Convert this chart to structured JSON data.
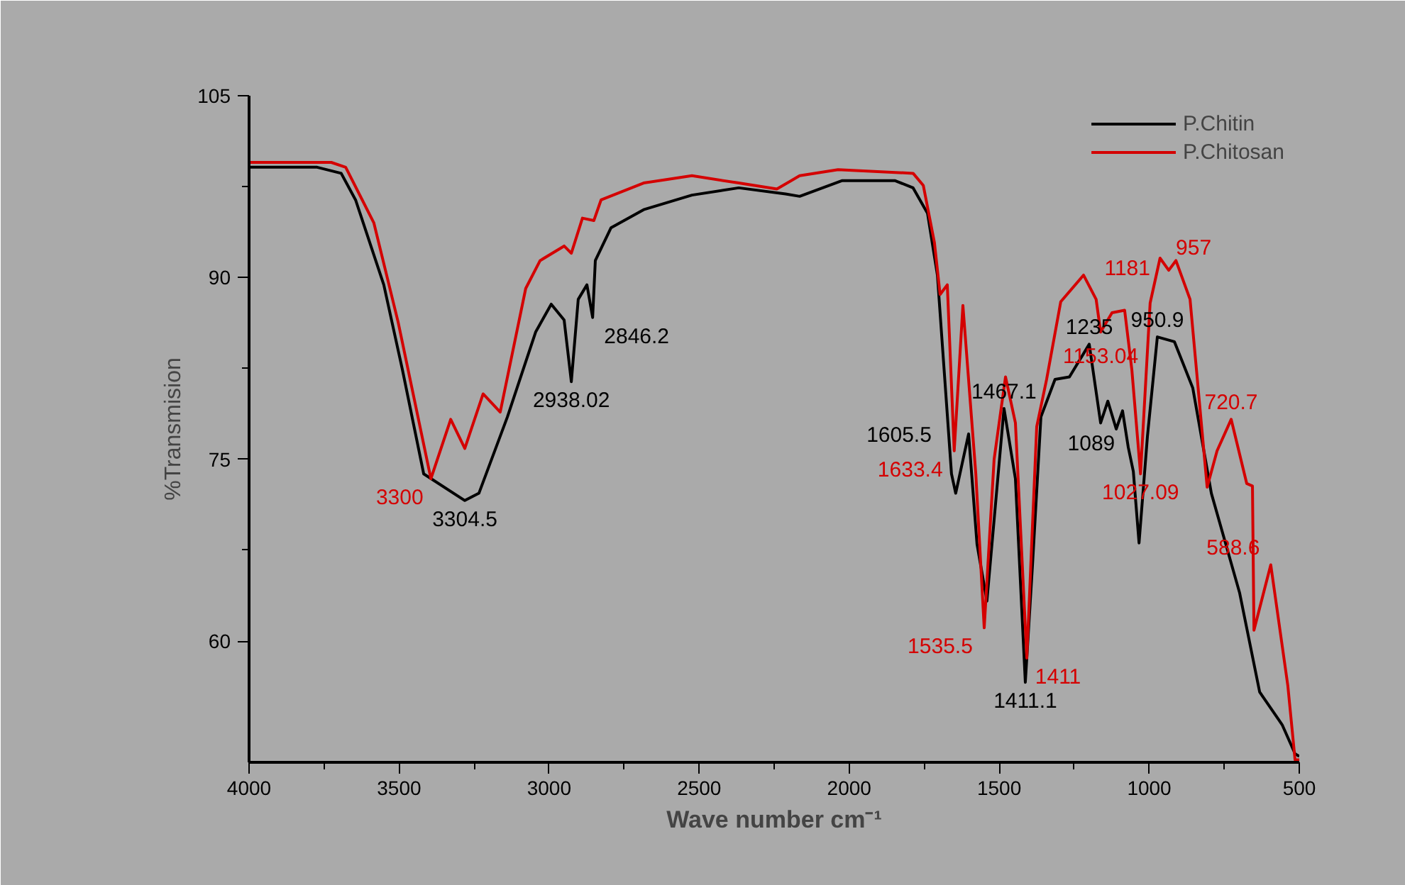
{
  "chart_data": {
    "type": "line",
    "xlabel": "Wave number cm⁻¹",
    "ylabel": "%Transmision",
    "xlim": [
      4000,
      500
    ],
    "ylim": [
      50,
      105
    ],
    "xticks": [
      4000,
      3500,
      3000,
      2500,
      2000,
      1500,
      1000,
      500
    ],
    "yticks": [
      60,
      75,
      90,
      105
    ],
    "grid": false,
    "legend": "top right",
    "marker": "none",
    "line_style": "solid",
    "series": [
      {
        "name": "P.Chitin",
        "color": "#000000",
        "x": [
          4000,
          3773,
          3693,
          3645,
          3551,
          3489,
          3418,
          3281,
          3234,
          3139,
          3045,
          2993,
          2950,
          2926,
          2903,
          2874,
          2855,
          2846,
          2794,
          2685,
          2524,
          2368,
          2212,
          2165,
          2023,
          1848,
          1787,
          1739,
          1706,
          1659,
          1645,
          1602,
          1574,
          1541,
          1484,
          1446,
          1413,
          1389,
          1361,
          1314,
          1266,
          1200,
          1162,
          1138,
          1110,
          1089,
          1070,
          1053,
          1034,
          1006,
          973,
          916,
          855,
          793,
          699,
          632,
          557,
          514,
          500
        ],
        "values": [
          99.1,
          99.1,
          98.6,
          96.4,
          89.4,
          82.4,
          73.8,
          71.6,
          72.2,
          78.5,
          85.5,
          87.8,
          86.5,
          81.4,
          88.2,
          89.4,
          86.7,
          91.4,
          94.1,
          95.6,
          96.8,
          97.4,
          96.9,
          96.7,
          98.0,
          98.0,
          97.4,
          95.3,
          90.2,
          73.8,
          72.2,
          77.1,
          68.0,
          63.3,
          79.2,
          73.4,
          56.6,
          66.3,
          78.5,
          81.6,
          81.8,
          84.5,
          78.0,
          79.8,
          77.5,
          79.0,
          76.0,
          74.0,
          68.1,
          76.9,
          85.1,
          84.7,
          80.9,
          72.2,
          64.0,
          55.8,
          53.1,
          50.7,
          50.5
        ]
      },
      {
        "name": "P.Chitosan",
        "color": "#d40000",
        "x": [
          4000,
          3726,
          3678,
          3584,
          3503,
          3394,
          3328,
          3281,
          3220,
          3163,
          3078,
          3030,
          2950,
          2926,
          2889,
          2851,
          2827,
          2685,
          2524,
          2368,
          2241,
          2165,
          2037,
          1787,
          1753,
          1716,
          1697,
          1673,
          1650,
          1621,
          1578,
          1550,
          1517,
          1479,
          1446,
          1408,
          1375,
          1342,
          1295,
          1219,
          1177,
          1162,
          1124,
          1082,
          1058,
          1029,
          997,
          964,
          935,
          911,
          864,
          807,
          774,
          727,
          675,
          656,
          651,
          595,
          538,
          514,
          500
        ],
        "values": [
          99.5,
          99.5,
          99.1,
          94.5,
          86.3,
          73.4,
          78.3,
          75.9,
          80.4,
          78.9,
          89.1,
          91.4,
          92.6,
          92.0,
          94.9,
          94.7,
          96.4,
          97.8,
          98.4,
          97.8,
          97.3,
          98.4,
          98.9,
          98.6,
          97.6,
          92.9,
          88.6,
          89.4,
          75.7,
          87.7,
          73.8,
          61.1,
          75.0,
          81.8,
          78.0,
          58.6,
          77.7,
          81.6,
          88.0,
          90.2,
          88.2,
          85.5,
          87.1,
          87.3,
          82.4,
          73.8,
          87.9,
          91.6,
          90.6,
          91.4,
          88.2,
          72.7,
          75.7,
          78.3,
          73.0,
          72.8,
          60.9,
          66.3,
          56.3,
          50.2,
          50.2
        ]
      }
    ],
    "annotations": [
      {
        "text": "3304.5",
        "x": 3281,
        "y": 71.6
      },
      {
        "text": "3300",
        "x": 3394,
        "y": 73.4
      },
      {
        "text": "2938.02",
        "x": 2926,
        "y": 81.4
      },
      {
        "text": "2846.2",
        "x": 2855,
        "y": 86.7
      },
      {
        "text": "1633.4",
        "x": 1650,
        "y": 75.7
      },
      {
        "text": "1605.5",
        "x": 1602,
        "y": 77.1
      },
      {
        "text": "1467.1",
        "x": 1484,
        "y": 79.2
      },
      {
        "text": "1235",
        "x": 1200,
        "y": 84.5
      },
      {
        "text": "1089",
        "x": 1089,
        "y": 79.0
      },
      {
        "text": "1181",
        "x": 1177,
        "y": 88.2
      },
      {
        "text": "1153.04",
        "x": 1162,
        "y": 85.5
      },
      {
        "text": "950.9",
        "x": 973,
        "y": 85.1
      },
      {
        "text": "957",
        "x": 935,
        "y": 90.6
      },
      {
        "text": "720.7",
        "x": 727,
        "y": 78.3
      },
      {
        "text": "1411",
        "x": 1408,
        "y": 58.6
      },
      {
        "text": "1535.5",
        "x": 1550,
        "y": 61.1
      },
      {
        "text": "1411.1",
        "x": 1413,
        "y": 56.6
      },
      {
        "text": "1027.09",
        "x": 1029,
        "y": 73.8
      },
      {
        "text": "588.6",
        "x": 595,
        "y": 66.3
      }
    ]
  }
}
